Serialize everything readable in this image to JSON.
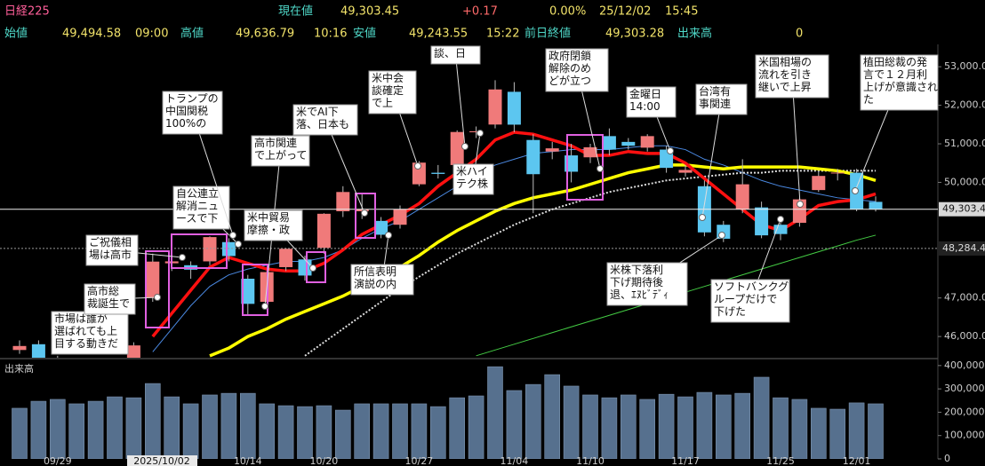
{
  "header": {
    "row1": [
      {
        "text": "日経225",
        "color": "#ff5f9a"
      },
      {
        "text": "現在値",
        "color": "#4fd8c8"
      },
      {
        "text": "49,303.45",
        "color": "#f2e36a"
      },
      {
        "text": "+0.17",
        "color": "#ff6a6a"
      },
      {
        "text": "0.00%",
        "color": "#f2e36a"
      },
      {
        "text": "25/12/02",
        "color": "#f2e36a"
      },
      {
        "text": "15:45",
        "color": "#f2e36a"
      }
    ],
    "row2": [
      {
        "text": "始値",
        "color": "#4fd8c8"
      },
      {
        "text": "49,494.58",
        "color": "#f2e36a"
      },
      {
        "text": "09:00",
        "color": "#f2e36a"
      },
      {
        "text": "高値",
        "color": "#4fd8c8"
      },
      {
        "text": "49,636.79",
        "color": "#f2e36a"
      },
      {
        "text": "10:16",
        "color": "#f2e36a"
      },
      {
        "text": "安値",
        "color": "#4fd8c8"
      },
      {
        "text": "49,243.55",
        "color": "#f2e36a"
      },
      {
        "text": "15:22",
        "color": "#f2e36a"
      },
      {
        "text": "前日終値",
        "color": "#4fd8c8"
      },
      {
        "text": "49,303.28",
        "color": "#f2e36a"
      },
      {
        "text": "出来高",
        "color": "#4fd8c8"
      },
      {
        "text": "0",
        "color": "#f2e36a"
      }
    ]
  },
  "chart_data": [
    {
      "type": "candlestick",
      "categories": [
        null,
        null,
        "09/29",
        null,
        null,
        "2025/10/02",
        null,
        null,
        null,
        null,
        null,
        null,
        "10/14",
        null,
        null,
        null,
        "10/20",
        null,
        null,
        null,
        null,
        "10/27",
        null,
        null,
        null,
        null,
        "11/04",
        null,
        null,
        null,
        "11/10",
        null,
        null,
        null,
        null,
        "11/17",
        null,
        null,
        null,
        null,
        "11/25",
        null,
        null,
        null,
        "12/01",
        null
      ],
      "open": [
        45650,
        45800,
        45400,
        45100,
        44900,
        44600,
        45300,
        47000,
        47900,
        47850,
        47950,
        48450,
        47500,
        46900,
        47800,
        48000,
        48300,
        49250,
        49250,
        49000,
        48900,
        49950,
        50250,
        50450,
        51300,
        51500,
        52350,
        51100,
        50800,
        50700,
        50650,
        51200,
        51050,
        50900,
        50850,
        50250,
        49900,
        48900,
        49300,
        49350,
        48900,
        48950,
        49800,
        50250,
        50250,
        49494.58
      ],
      "high": [
        45900,
        45900,
        45500,
        45250,
        45000,
        45100,
        45850,
        48150,
        48100,
        47950,
        48600,
        48550,
        47600,
        47700,
        48300,
        48100,
        49200,
        49900,
        49700,
        49100,
        49400,
        50550,
        50450,
        51350,
        51450,
        52650,
        52600,
        51250,
        51050,
        51000,
        51000,
        51400,
        51150,
        51250,
        50950,
        50450,
        50050,
        49000,
        50600,
        49500,
        49100,
        49600,
        50300,
        50350,
        50350,
        49636.79
      ],
      "low": [
        45550,
        45300,
        44950,
        44800,
        44450,
        44500,
        45200,
        46900,
        47700,
        47500,
        47850,
        47950,
        46550,
        46800,
        47700,
        47450,
        48150,
        49100,
        49050,
        48550,
        48800,
        49900,
        50100,
        50300,
        51150,
        51400,
        51300,
        49200,
        50600,
        50000,
        50500,
        50700,
        50850,
        50800,
        50250,
        50150,
        48600,
        48450,
        49200,
        48550,
        48500,
        48850,
        49750,
        50050,
        49250,
        49243.55
      ],
      "close": [
        45754,
        45354,
        45043,
        44932,
        44550,
        44936,
        45769,
        47944,
        47950,
        47734,
        48580,
        48088,
        46847,
        47672,
        48277,
        47582,
        49185,
        49750,
        49307,
        48641,
        49299,
        50512,
        50219,
        51307,
        51325,
        52411,
        51497,
        50212,
        50883,
        50276,
        50911,
        50850,
        50950,
        51200,
        50376,
        50323,
        48702,
        48537,
        49950,
        48625,
        48659,
        49559,
        50167,
        50253,
        49303.28,
        49303.45
      ],
      "up_color": "#f07a7a",
      "down_color": "#5cc6f0",
      "series": [
        {
          "color": "#4a88e0",
          "style": "thin",
          "values": [
            null,
            null,
            null,
            null,
            null,
            null,
            null,
            45600,
            46200,
            46800,
            47300,
            47600,
            47750,
            47850,
            47950,
            47950,
            48050,
            48250,
            48550,
            48800,
            49000,
            49300,
            49600,
            49900,
            50200,
            50450,
            50600,
            50750,
            50800,
            50850,
            50850,
            50850,
            50900,
            50950,
            50950,
            50850,
            50600,
            50450,
            50250,
            50050,
            49900,
            49800,
            49700,
            49600,
            49550,
            49500
          ]
        },
        {
          "color": "#dddddd",
          "style": "dotted",
          "values": [
            null,
            null,
            null,
            null,
            null,
            null,
            null,
            null,
            null,
            null,
            null,
            null,
            null,
            null,
            null,
            45500,
            45850,
            46200,
            46550,
            46900,
            47250,
            47550,
            47850,
            48150,
            48400,
            48650,
            48900,
            49100,
            49300,
            49450,
            49600,
            49750,
            49850,
            49950,
            50050,
            50100,
            50150,
            50200,
            50250,
            50250,
            50300,
            50300,
            50300,
            50300,
            50300,
            50300
          ]
        },
        {
          "color": "#44cc44",
          "style": "thin",
          "values": [
            null,
            null,
            null,
            null,
            null,
            null,
            null,
            null,
            null,
            null,
            null,
            null,
            null,
            null,
            null,
            null,
            null,
            null,
            null,
            null,
            null,
            null,
            null,
            null,
            45500,
            45650,
            45800,
            45950,
            46100,
            46250,
            46400,
            46550,
            46700,
            46850,
            47000,
            47150,
            47300,
            47450,
            47600,
            47750,
            47900,
            48050,
            48200,
            48350,
            48500,
            48630
          ]
        },
        {
          "color": "#ffff00",
          "style": "thick",
          "values": [
            null,
            null,
            null,
            null,
            null,
            null,
            null,
            null,
            null,
            null,
            45500,
            45700,
            46000,
            46200,
            46450,
            46650,
            46850,
            47050,
            47300,
            47550,
            47800,
            48100,
            48450,
            48750,
            49000,
            49250,
            49450,
            49600,
            49700,
            49800,
            49950,
            50100,
            50250,
            50350,
            50450,
            50450,
            50400,
            50350,
            50400,
            50400,
            50400,
            50400,
            50350,
            50300,
            50200,
            50050
          ]
        },
        {
          "color": "#ff1010",
          "style": "thick",
          "values": [
            null,
            null,
            null,
            null,
            null,
            null,
            null,
            46000,
            46600,
            47200,
            47800,
            48050,
            47900,
            47750,
            47700,
            47700,
            47900,
            48250,
            48650,
            48900,
            49150,
            49450,
            49900,
            50250,
            50600,
            51100,
            51300,
            51250,
            51100,
            50950,
            50700,
            50700,
            50800,
            50750,
            50750,
            50500,
            50100,
            49700,
            49300,
            48900,
            48750,
            49050,
            49400,
            49500,
            49550,
            49700
          ]
        }
      ],
      "ylim": [
        45450,
        53350
      ],
      "yticks": [
        {
          "value": 46000,
          "label": "46,000.0"
        },
        {
          "value": 47000,
          "label": "47,000.0"
        },
        {
          "value": 50000,
          "label": "50,000.0"
        },
        {
          "value": 51000,
          "label": "51,000.0"
        },
        {
          "value": 52000,
          "label": "52,000.0"
        },
        {
          "value": 53000,
          "label": "53,000.0"
        }
      ],
      "price_markers": [
        {
          "value": 49303.45,
          "label": "49,303.4",
          "style": "solid"
        },
        {
          "value": 48284.4,
          "label": "48,284.4",
          "style": "dotted"
        }
      ],
      "annotations": [
        {
          "lines": [
            "市場は誰が",
            "選ばれても上",
            "目する動きだ"
          ]
        },
        {
          "lines": [
            "高市総",
            "裁誕生で"
          ]
        },
        {
          "lines": [
            "ご祝儀相",
            "場は高市"
          ]
        },
        {
          "lines": [
            "自公連立",
            "解消ニュ",
            "ースで下"
          ]
        },
        {
          "lines": [
            "トランプの",
            "中国関税",
            "100%の"
          ]
        },
        {
          "lines": [
            "高市関連",
            "で上がって"
          ]
        },
        {
          "lines": [
            "米中貿易",
            "摩擦・政"
          ]
        },
        {
          "lines": [
            "米でAI下",
            "落、日本も"
          ]
        },
        {
          "lines": [
            "所信表明",
            "演説の内"
          ]
        },
        {
          "lines": [
            "米中会",
            "談確定",
            "で上"
          ]
        },
        {
          "lines": [
            "談、日"
          ]
        },
        {
          "lines": [
            "米ハイ",
            "テク株"
          ]
        },
        {
          "lines": [
            "政府閉鎖",
            "解除のめ",
            "どが立つ"
          ]
        },
        {
          "lines": [
            "金曜日",
            "14:00"
          ]
        },
        {
          "lines": [
            "台湾有",
            "事関連"
          ]
        },
        {
          "lines": [
            "米国相場の",
            "流れを引き",
            "継いで上昇"
          ]
        },
        {
          "lines": [
            "植田総裁の発",
            "言で１２月利",
            "上げが意識され",
            "た"
          ]
        },
        {
          "lines": [
            "米株下落利",
            "下げ期待後",
            "退、ｴﾇﾋﾞﾃﾞｨ"
          ]
        },
        {
          "lines": [
            "ソフトバンクグ",
            "ループだけで",
            "下げた"
          ]
        }
      ]
    },
    {
      "type": "bar",
      "title": "出来高",
      "color": "#56708e",
      "values": [
        217000,
        247000,
        255000,
        236000,
        247000,
        266000,
        262000,
        323000,
        266000,
        236000,
        274000,
        281000,
        281000,
        236000,
        228000,
        224000,
        228000,
        209000,
        236000,
        236000,
        236000,
        236000,
        224000,
        262000,
        270000,
        395000,
        293000,
        319000,
        361000,
        312000,
        274000,
        262000,
        274000,
        255000,
        277000,
        266000,
        285000,
        274000,
        281000,
        350000,
        262000,
        255000,
        217000,
        213000,
        240000,
        236000
      ],
      "ylim": [
        0,
        426000
      ],
      "yticks": [
        0,
        {
          "value": 100000,
          "label": "100,000"
        },
        {
          "value": 200000,
          "label": "200,000"
        },
        {
          "value": 300000,
          "label": "300,000"
        },
        {
          "value": 400000,
          "label": "400,000"
        }
      ]
    }
  ]
}
